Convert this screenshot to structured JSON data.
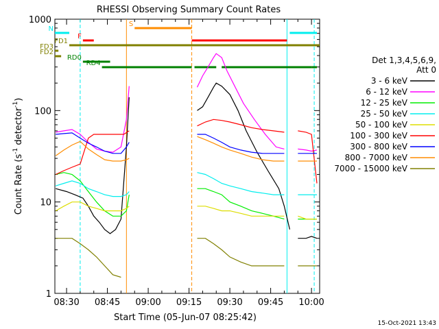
{
  "chart_data": {
    "type": "line",
    "title": "RHESSI Observing Summary Count Rates",
    "xlabel": "Start Time (05-Jun-07 08:25:42)",
    "ylabel": "Count Rate (s⁻¹ detector⁻¹)",
    "ylabel_parts": {
      "main": "Count Rate (s",
      "sup1": "-1",
      "mid": " detector",
      "sup2": "-1",
      "end": ")"
    },
    "y_scale": "log",
    "ylim": [
      1,
      1000
    ],
    "xlim": [
      "08:25:42",
      "10:03:00"
    ],
    "x_ticks": [
      "08:30",
      "08:45",
      "09:00",
      "09:15",
      "09:30",
      "09:45",
      "10:00"
    ],
    "y_ticks": [
      "1",
      "10",
      "100",
      "1000"
    ],
    "footer_date": "15-Oct-2021 13:43",
    "legend": {
      "header_line1": "Det 1,3,4,5,6,9,",
      "header_line2": "Att 0",
      "position": "right"
    },
    "series": [
      {
        "name": "3 - 6 keV",
        "color": "#000000",
        "points": [
          [
            "08:26",
            14
          ],
          [
            "08:30",
            13
          ],
          [
            "08:33",
            12
          ],
          [
            "08:36",
            11
          ],
          [
            "08:38",
            9
          ],
          [
            "08:40",
            7
          ],
          [
            "08:42",
            6
          ],
          [
            "08:44",
            5
          ],
          [
            "08:46",
            4.5
          ],
          [
            "08:48",
            5
          ],
          [
            "08:50",
            6.5
          ],
          [
            "08:52",
            40
          ],
          [
            "08:53",
            140
          ],
          [
            null,
            null
          ],
          [
            "09:18",
            100
          ],
          [
            "09:20",
            110
          ],
          [
            "09:22",
            140
          ],
          [
            "09:24",
            180
          ],
          [
            "09:25",
            200
          ],
          [
            "09:27",
            185
          ],
          [
            "09:30",
            150
          ],
          [
            "09:33",
            100
          ],
          [
            "09:36",
            60
          ],
          [
            "09:40",
            35
          ],
          [
            "09:44",
            22
          ],
          [
            "09:48",
            14
          ],
          [
            "09:50",
            9
          ],
          [
            "09:52",
            5
          ],
          [
            null,
            null
          ],
          [
            "09:55",
            4
          ],
          [
            "09:58",
            4
          ],
          [
            "10:00",
            4.2
          ],
          [
            "10:02",
            4
          ]
        ]
      },
      {
        "name": "6 - 12 keV",
        "color": "#ff00ff",
        "points": [
          [
            "08:26",
            58
          ],
          [
            "08:29",
            60
          ],
          [
            "08:32",
            62
          ],
          [
            "08:35",
            55
          ],
          [
            "08:38",
            45
          ],
          [
            "08:41",
            38
          ],
          [
            "08:44",
            36
          ],
          [
            "08:47",
            35
          ],
          [
            "08:50",
            40
          ],
          [
            "08:52",
            80
          ],
          [
            "08:53",
            185
          ],
          [
            null,
            null
          ],
          [
            "09:18",
            180
          ],
          [
            "09:20",
            240
          ],
          [
            "09:22",
            300
          ],
          [
            "09:24",
            380
          ],
          [
            "09:25",
            420
          ],
          [
            "09:27",
            380
          ],
          [
            "09:29",
            270
          ],
          [
            "09:32",
            180
          ],
          [
            "09:35",
            120
          ],
          [
            "09:39",
            80
          ],
          [
            "09:43",
            55
          ],
          [
            "09:47",
            40
          ],
          [
            "09:50",
            38
          ],
          [
            null,
            null
          ],
          [
            "09:55",
            38
          ],
          [
            "09:58",
            37
          ],
          [
            "10:00",
            36
          ],
          [
            "10:02",
            37
          ]
        ]
      },
      {
        "name": "12 - 25 keV",
        "color": "#00ee00",
        "points": [
          [
            "08:26",
            20
          ],
          [
            "08:29",
            21
          ],
          [
            "08:32",
            20
          ],
          [
            "08:35",
            17
          ],
          [
            "08:38",
            13
          ],
          [
            "08:41",
            10
          ],
          [
            "08:44",
            8
          ],
          [
            "08:47",
            7
          ],
          [
            "08:50",
            7
          ],
          [
            "08:52",
            8
          ],
          [
            "08:53",
            12
          ],
          [
            null,
            null
          ],
          [
            "09:18",
            14
          ],
          [
            "09:21",
            14
          ],
          [
            "09:24",
            13
          ],
          [
            "09:27",
            12
          ],
          [
            "09:30",
            10
          ],
          [
            "09:34",
            9
          ],
          [
            "09:38",
            8
          ],
          [
            "09:42",
            7.5
          ],
          [
            "09:46",
            7
          ],
          [
            "09:50",
            6.5
          ],
          [
            null,
            null
          ],
          [
            "09:55",
            6.5
          ],
          [
            "09:58",
            6.5
          ],
          [
            "10:00",
            6.5
          ],
          [
            "10:02",
            6.5
          ]
        ]
      },
      {
        "name": "25 - 50 keV",
        "color": "#00eeee",
        "points": [
          [
            "08:26",
            15
          ],
          [
            "08:29",
            16
          ],
          [
            "08:32",
            17
          ],
          [
            "08:35",
            16
          ],
          [
            "08:38",
            14
          ],
          [
            "08:41",
            13
          ],
          [
            "08:44",
            12
          ],
          [
            "08:47",
            11.5
          ],
          [
            "08:50",
            11.5
          ],
          [
            "08:52",
            12
          ],
          [
            "08:53",
            13
          ],
          [
            null,
            null
          ],
          [
            "09:18",
            21
          ],
          [
            "09:21",
            20
          ],
          [
            "09:24",
            18
          ],
          [
            "09:27",
            16
          ],
          [
            "09:30",
            15
          ],
          [
            "09:34",
            14
          ],
          [
            "09:38",
            13
          ],
          [
            "09:42",
            12.5
          ],
          [
            "09:46",
            12
          ],
          [
            "09:50",
            12
          ],
          [
            null,
            null
          ],
          [
            "09:55",
            12
          ],
          [
            "09:58",
            12
          ],
          [
            "10:00",
            12
          ],
          [
            "10:02",
            12
          ]
        ]
      },
      {
        "name": "50 - 100 keV",
        "color": "#dddd00",
        "points": [
          [
            "08:26",
            8
          ],
          [
            "08:29",
            9
          ],
          [
            "08:32",
            10
          ],
          [
            "08:35",
            10
          ],
          [
            "08:38",
            9
          ],
          [
            "08:41",
            8.5
          ],
          [
            "08:44",
            8
          ],
          [
            "08:47",
            8
          ],
          [
            "08:50",
            8
          ],
          [
            "08:52",
            8.5
          ],
          [
            "08:53",
            9
          ],
          [
            null,
            null
          ],
          [
            "09:18",
            9
          ],
          [
            "09:21",
            9
          ],
          [
            "09:24",
            8.5
          ],
          [
            "09:27",
            8
          ],
          [
            "09:30",
            8
          ],
          [
            "09:34",
            7.5
          ],
          [
            "09:38",
            7
          ],
          [
            "09:42",
            7
          ],
          [
            "09:46",
            7
          ],
          [
            "09:50",
            7
          ],
          [
            null,
            null
          ],
          [
            "09:55",
            7
          ],
          [
            "09:58",
            6.5
          ],
          [
            "10:00",
            6.5
          ],
          [
            "10:02",
            6.5
          ]
        ]
      },
      {
        "name": "100 - 300 keV",
        "color": "#ff0000",
        "points": [
          [
            "08:26",
            20
          ],
          [
            "08:29",
            22
          ],
          [
            "08:32",
            24
          ],
          [
            "08:35",
            26
          ],
          [
            "08:38",
            50
          ],
          [
            "08:40",
            55
          ],
          [
            "08:43",
            55
          ],
          [
            "08:46",
            55
          ],
          [
            "08:49",
            55
          ],
          [
            "08:51",
            55
          ],
          [
            "08:53",
            60
          ],
          [
            null,
            null
          ],
          [
            "09:18",
            68
          ],
          [
            "09:21",
            75
          ],
          [
            "09:24",
            80
          ],
          [
            "09:27",
            78
          ],
          [
            "09:30",
            75
          ],
          [
            "09:34",
            70
          ],
          [
            "09:38",
            65
          ],
          [
            "09:42",
            62
          ],
          [
            "09:46",
            60
          ],
          [
            "09:50",
            58
          ],
          [
            null,
            null
          ],
          [
            "09:55",
            60
          ],
          [
            "09:58",
            58
          ],
          [
            "10:00",
            55
          ],
          [
            "10:02",
            16
          ]
        ]
      },
      {
        "name": "300 - 800 keV",
        "color": "#0000ff",
        "points": [
          [
            "08:26",
            55
          ],
          [
            "08:29",
            56
          ],
          [
            "08:32",
            57
          ],
          [
            "08:35",
            50
          ],
          [
            "08:38",
            44
          ],
          [
            "08:41",
            40
          ],
          [
            "08:44",
            36
          ],
          [
            "08:47",
            34
          ],
          [
            "08:50",
            34
          ],
          [
            "08:52",
            40
          ],
          [
            "08:53",
            45
          ],
          [
            null,
            null
          ],
          [
            "09:18",
            55
          ],
          [
            "09:21",
            55
          ],
          [
            "09:24",
            50
          ],
          [
            "09:27",
            45
          ],
          [
            "09:30",
            40
          ],
          [
            "09:34",
            37
          ],
          [
            "09:38",
            35
          ],
          [
            "09:42",
            34
          ],
          [
            "09:46",
            34
          ],
          [
            "09:50",
            34
          ],
          [
            null,
            null
          ],
          [
            "09:55",
            34
          ],
          [
            "09:58",
            34
          ],
          [
            "10:00",
            34
          ],
          [
            "10:02",
            34
          ]
        ]
      },
      {
        "name": "800 - 7000 keV",
        "color": "#ff8c00",
        "points": [
          [
            "08:26",
            32
          ],
          [
            "08:29",
            37
          ],
          [
            "08:32",
            42
          ],
          [
            "08:35",
            46
          ],
          [
            "08:38",
            38
          ],
          [
            "08:41",
            33
          ],
          [
            "08:44",
            29
          ],
          [
            "08:47",
            28
          ],
          [
            "08:50",
            28
          ],
          [
            "08:52",
            29
          ],
          [
            "08:53",
            30
          ],
          [
            null,
            null
          ],
          [
            "09:18",
            52
          ],
          [
            "09:21",
            48
          ],
          [
            "09:24",
            44
          ],
          [
            "09:27",
            40
          ],
          [
            "09:30",
            37
          ],
          [
            "09:34",
            34
          ],
          [
            "09:38",
            31
          ],
          [
            "09:42",
            29
          ],
          [
            "09:46",
            28
          ],
          [
            "09:50",
            28
          ],
          [
            null,
            null
          ],
          [
            "09:55",
            28
          ],
          [
            "09:58",
            28
          ],
          [
            "10:00",
            28
          ],
          [
            "10:02",
            28
          ]
        ]
      },
      {
        "name": "7000 - 15000 keV",
        "color": "#808000",
        "points": [
          [
            "08:26",
            4
          ],
          [
            "08:29",
            4
          ],
          [
            "08:32",
            4
          ],
          [
            "08:35",
            3.5
          ],
          [
            "08:38",
            3
          ],
          [
            "08:41",
            2.5
          ],
          [
            "08:44",
            2
          ],
          [
            "08:47",
            1.6
          ],
          [
            "08:50",
            1.5
          ],
          [
            null,
            null
          ],
          [
            "09:18",
            4
          ],
          [
            "09:21",
            4
          ],
          [
            "09:24",
            3.5
          ],
          [
            "09:27",
            3
          ],
          [
            "09:30",
            2.5
          ],
          [
            "09:34",
            2.2
          ],
          [
            "09:38",
            2
          ],
          [
            "09:42",
            2
          ],
          [
            "09:46",
            2
          ],
          [
            "09:50",
            2
          ],
          [
            null,
            null
          ],
          [
            "09:55",
            2
          ],
          [
            "09:58",
            2
          ],
          [
            "10:00",
            2
          ],
          [
            "10:02",
            2
          ]
        ]
      }
    ],
    "state_bars": [
      {
        "label": "N",
        "color": "#00eeee",
        "segments": [
          [
            "08:25:42",
            "08:31"
          ],
          [
            "09:52",
            "10:02"
          ]
        ]
      },
      {
        "label": "F",
        "color": "#ff0000",
        "segments": [
          [
            "08:36",
            "08:40"
          ],
          [
            "09:16",
            "09:51"
          ]
        ]
      },
      {
        "label": "S",
        "color": "#ff8c00",
        "segments": [
          [
            "08:55",
            "09:16"
          ]
        ]
      },
      {
        "label": "FD1",
        "color": "#808000",
        "segments": [
          [
            "08:31",
            "10:03"
          ]
        ]
      },
      {
        "label": "FD2",
        "color": "#808000",
        "segments": [
          [
            "08:25:42",
            "08:28"
          ]
        ]
      },
      {
        "label": "FD3",
        "color": "#808000",
        "segments": [
          [
            "08:25:42",
            "08:27"
          ]
        ]
      },
      {
        "label": "RD0",
        "color": "#008000",
        "segments": [
          [
            "08:36",
            "08:46"
          ]
        ]
      },
      {
        "label": "RD4",
        "color": "#008000",
        "segments": [
          [
            "08:43",
            "09:16"
          ],
          [
            "09:17",
            "09:25"
          ],
          [
            "09:27",
            "10:00"
          ],
          [
            "10:00",
            "10:02"
          ]
        ]
      }
    ],
    "vertical_markers": [
      {
        "time": "08:35",
        "color": "#00eeee",
        "style": "dashed"
      },
      {
        "time": "08:52",
        "color": "#ff8c00",
        "style": "solid"
      },
      {
        "time": "09:16",
        "color": "#ff8c00",
        "style": "dashed"
      },
      {
        "time": "09:51",
        "color": "#00eeee",
        "style": "solid"
      },
      {
        "time": "10:01",
        "color": "#00eeee",
        "style": "dashed"
      }
    ]
  }
}
